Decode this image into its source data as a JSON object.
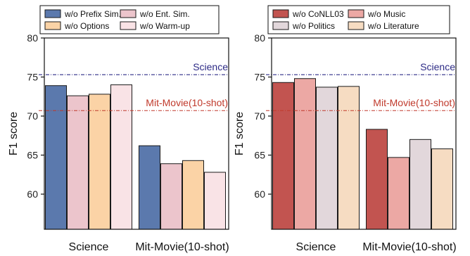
{
  "chart_data": [
    {
      "type": "bar",
      "categories": [
        "Science",
        "Mit-Movie(10-shot)"
      ],
      "ylabel": "F1 score",
      "ylim": [
        55.5,
        80
      ],
      "yticks": [
        60,
        65,
        70,
        75,
        80
      ],
      "grid": false,
      "legend_position": "top",
      "series": [
        {
          "name": "w/o Prefix Sim.",
          "values": [
            73.9,
            66.2
          ],
          "color": "#5b79ad"
        },
        {
          "name": "w/o Ent. Sim.",
          "values": [
            72.6,
            63.9
          ],
          "color": "#ecc5cc"
        },
        {
          "name": "w/o Options",
          "values": [
            72.8,
            64.3
          ],
          "color": "#fbd3a6"
        },
        {
          "name": "w/o Warm-up",
          "values": [
            74.0,
            62.8
          ],
          "color": "#f9e3e6"
        }
      ],
      "reference_lines": [
        {
          "label": "Science",
          "value": 75.3,
          "color": "#2d2b86",
          "style": "dashdot"
        },
        {
          "label": "Mit-Movie(10-shot)",
          "value": 70.7,
          "color": "#c0392b",
          "style": "dashdot"
        }
      ]
    },
    {
      "type": "bar",
      "categories": [
        "Science",
        "Mit-Movie(10-shot)"
      ],
      "ylabel": "F1 score",
      "ylim": [
        55.5,
        80
      ],
      "yticks": [
        60,
        65,
        70,
        75,
        80
      ],
      "grid": false,
      "legend_position": "top",
      "series": [
        {
          "name": "w/o CoNLL03",
          "values": [
            74.3,
            68.3
          ],
          "color": "#c25450"
        },
        {
          "name": "w/o Music",
          "values": [
            74.8,
            64.7
          ],
          "color": "#eca8a4"
        },
        {
          "name": "w/o Politics",
          "values": [
            73.7,
            67.0
          ],
          "color": "#e2d7db"
        },
        {
          "name": "w/o Literature",
          "values": [
            73.8,
            65.8
          ],
          "color": "#f6dcc2"
        }
      ],
      "reference_lines": [
        {
          "label": "Science",
          "value": 75.3,
          "color": "#2d2b86",
          "style": "dashdot"
        },
        {
          "label": "Mit-Movie(10-shot)",
          "value": 70.7,
          "color": "#c0392b",
          "style": "dashdot"
        }
      ]
    }
  ]
}
